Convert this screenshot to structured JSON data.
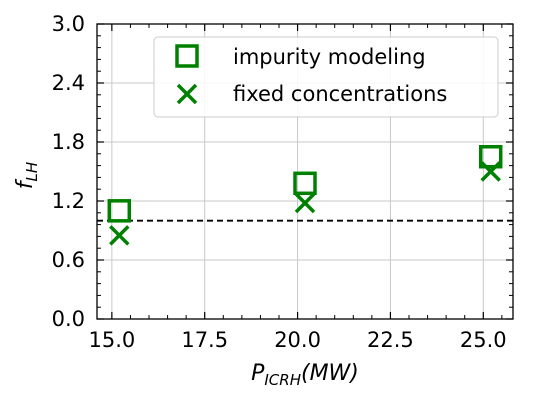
{
  "chart_data": {
    "type": "scatter",
    "title": "",
    "xlabel": {
      "main": "P",
      "sub": "ICRH",
      "unit": "(MW)"
    },
    "ylabel": {
      "main": "f",
      "sub": "LH"
    },
    "xlim": [
      14.6,
      25.8
    ],
    "ylim": [
      0.0,
      3.0
    ],
    "xticks": [
      15.0,
      17.5,
      20.0,
      22.5,
      25.0
    ],
    "xtick_labels": [
      "15.0",
      "17.5",
      "20.0",
      "22.5",
      "25.0"
    ],
    "yticks": [
      0.0,
      0.6,
      1.2,
      1.8,
      2.4,
      3.0
    ],
    "ytick_labels": [
      "0.0",
      "0.6",
      "1.2",
      "1.8",
      "2.4",
      "3.0"
    ],
    "grid": true,
    "legend_position": "top-right",
    "reference_line": {
      "y": 1.0,
      "style": "dashed",
      "color": "#000000"
    },
    "series": [
      {
        "name": "impurity modeling",
        "marker": "square",
        "color": "#008000",
        "x": [
          15.2,
          20.2,
          25.2
        ],
        "y": [
          1.1,
          1.38,
          1.65
        ]
      },
      {
        "name": "fixed concentrations",
        "marker": "x",
        "color": "#008000",
        "x": [
          15.2,
          20.2,
          25.2
        ],
        "y": [
          0.85,
          1.18,
          1.5
        ]
      }
    ]
  }
}
